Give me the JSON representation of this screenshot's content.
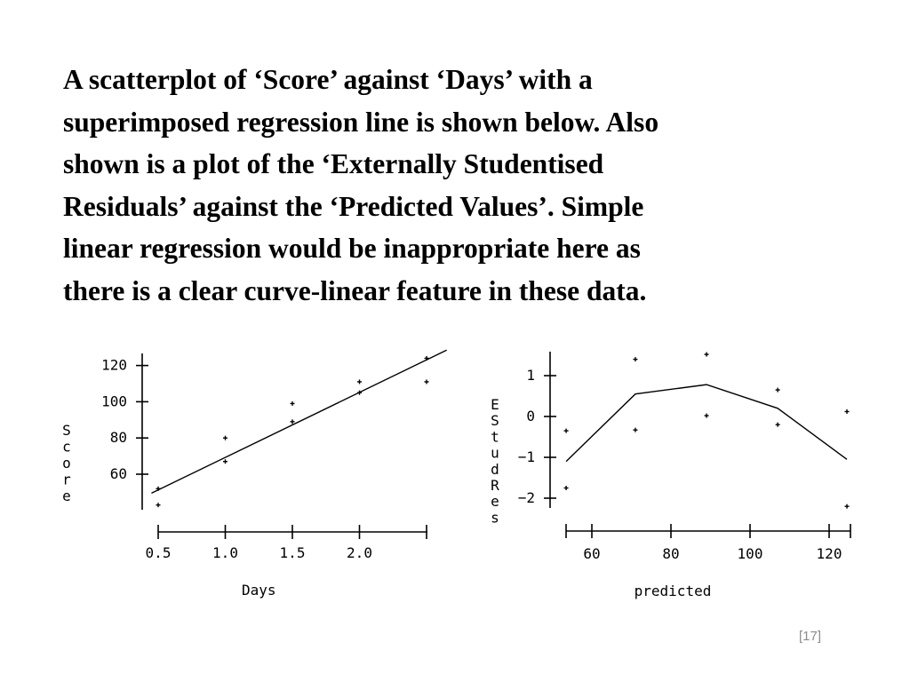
{
  "slide": {
    "paragraph_lines": [
      "A scatterplot of ‘Score’ against ‘Days’ with a",
      "superimposed regression line is shown below.  Also",
      "shown is a plot of the ‘Externally Studentised",
      "Residuals’ against the ‘Predicted Values’.  Simple",
      "linear regression would be inappropriate here as",
      "there is a clear curve-linear feature in these data."
    ],
    "page_number": "[17]"
  },
  "chart_data": [
    {
      "type": "scatter",
      "title": "",
      "xlabel": "Days",
      "ylabel": "Score",
      "xlim": [
        0.5,
        2.5
      ],
      "ylim": [
        40,
        125
      ],
      "x_ticks": [
        0.5,
        1.0,
        1.5,
        2.0,
        2.5
      ],
      "x_tick_labels": [
        "0.5",
        "1.0",
        "1.5",
        "2.0",
        ""
      ],
      "y_ticks": [
        60,
        80,
        100,
        120
      ],
      "y_tick_labels": [
        "60",
        "80",
        "100",
        "120"
      ],
      "points": [
        {
          "x": 0.5,
          "y": 52
        },
        {
          "x": 0.5,
          "y": 43
        },
        {
          "x": 1.0,
          "y": 80
        },
        {
          "x": 1.0,
          "y": 67
        },
        {
          "x": 1.5,
          "y": 99
        },
        {
          "x": 1.5,
          "y": 89
        },
        {
          "x": 2.0,
          "y": 111
        },
        {
          "x": 2.0,
          "y": 105
        },
        {
          "x": 2.5,
          "y": 124
        },
        {
          "x": 2.5,
          "y": 111
        }
      ],
      "regression_line": [
        {
          "x": 0.45,
          "y": 49.5
        },
        {
          "x": 2.65,
          "y": 128.5
        }
      ],
      "grid": false
    },
    {
      "type": "scatter",
      "title": "",
      "xlabel": "predicted",
      "ylabel": "EStudRes",
      "xlim": [
        53,
        125
      ],
      "ylim": [
        -2.4,
        1.6
      ],
      "x_ticks": [
        60,
        80,
        100,
        120
      ],
      "x_tick_labels": [
        "60",
        "80",
        "100",
        "120"
      ],
      "y_ticks": [
        1,
        0,
        -1,
        -2
      ],
      "y_tick_labels": [
        "1",
        "0",
        "−1",
        "−2"
      ],
      "points": [
        {
          "x": 53.5,
          "y": -0.35
        },
        {
          "x": 53.5,
          "y": -1.75
        },
        {
          "x": 71,
          "y": 1.4
        },
        {
          "x": 71,
          "y": -0.33
        },
        {
          "x": 89,
          "y": 1.52
        },
        {
          "x": 89,
          "y": 0.02
        },
        {
          "x": 107,
          "y": 0.65
        },
        {
          "x": 107,
          "y": -0.2
        },
        {
          "x": 124.5,
          "y": 0.12
        },
        {
          "x": 124.5,
          "y": -2.2
        }
      ],
      "smooth_line": [
        {
          "x": 53.5,
          "y": -1.1
        },
        {
          "x": 71,
          "y": 0.55
        },
        {
          "x": 89,
          "y": 0.78
        },
        {
          "x": 107,
          "y": 0.2
        },
        {
          "x": 124.5,
          "y": -1.05
        }
      ],
      "grid": false
    }
  ]
}
